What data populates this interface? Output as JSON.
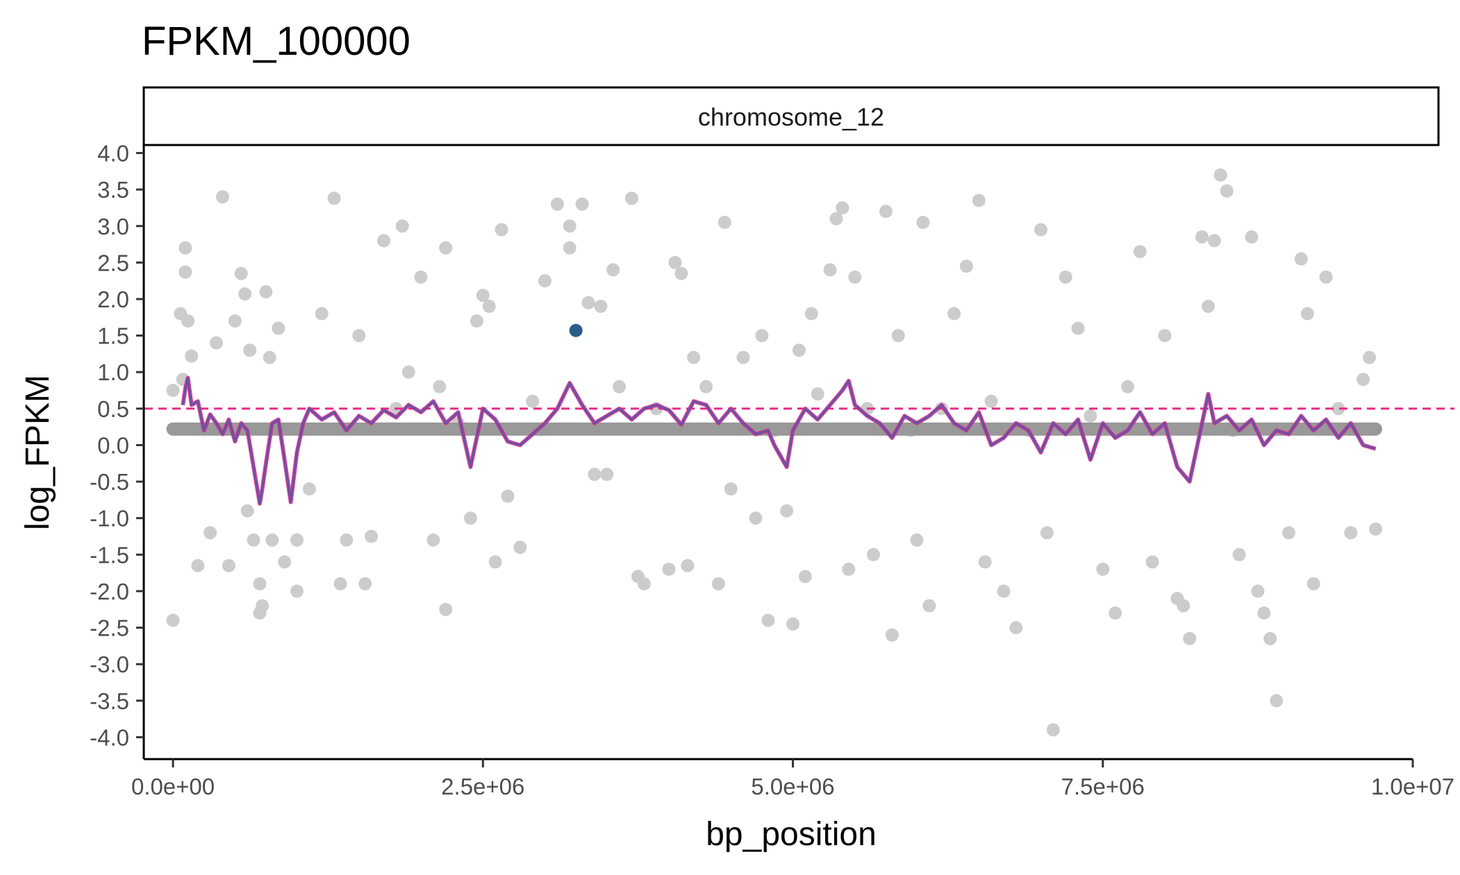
{
  "chart_data": {
    "type": "scatter",
    "title": "FPKM_100000",
    "facet_label": "chromosome_12",
    "xlabel": "bp_position",
    "ylabel": "log_FPKM",
    "xlim": [
      -230000,
      10000000
    ],
    "ylim": [
      -4.3,
      4.1
    ],
    "x_ticks": [
      {
        "value": 0,
        "label": "0.0e+00"
      },
      {
        "value": 2500000,
        "label": "2.5e+06"
      },
      {
        "value": 5000000,
        "label": "5.0e+06"
      },
      {
        "value": 7500000,
        "label": "7.5e+06"
      },
      {
        "value": 10000000,
        "label": "1.0e+07"
      }
    ],
    "y_ticks": [
      {
        "value": 4.0,
        "label": "4.0"
      },
      {
        "value": 3.5,
        "label": "3.5"
      },
      {
        "value": 3.0,
        "label": "3.0"
      },
      {
        "value": 2.5,
        "label": "2.5"
      },
      {
        "value": 2.0,
        "label": "2.0"
      },
      {
        "value": 1.5,
        "label": "1.5"
      },
      {
        "value": 1.0,
        "label": "1.0"
      },
      {
        "value": 0.5,
        "label": "0.5"
      },
      {
        "value": 0.0,
        "label": "0.0"
      },
      {
        "value": -0.5,
        "label": "-0.5"
      },
      {
        "value": -1.0,
        "label": "-1.0"
      },
      {
        "value": -1.5,
        "label": "-1.5"
      },
      {
        "value": -2.0,
        "label": "-2.0"
      },
      {
        "value": -2.5,
        "label": "-2.5"
      },
      {
        "value": -3.0,
        "label": "-3.0"
      },
      {
        "value": -3.5,
        "label": "-3.5"
      },
      {
        "value": -4.0,
        "label": "-4.0"
      }
    ],
    "threshold": {
      "y": 0.5,
      "color": "#e7298a",
      "style": "dashed"
    },
    "baseline": {
      "y": 0.22,
      "x_range": [
        0,
        9700000
      ],
      "color": "#999999"
    },
    "highlight_point": {
      "x": 3250000,
      "y": 1.57,
      "color": "#2b5d8a"
    },
    "colors": {
      "points": "#cccccc",
      "line": "#6a51a3",
      "line_above_threshold": "#e7298a"
    },
    "points": [
      [
        0,
        -2.4
      ],
      [
        0,
        0.75
      ],
      [
        60000,
        1.8
      ],
      [
        80000,
        0.9
      ],
      [
        100000,
        2.7
      ],
      [
        100000,
        2.37
      ],
      [
        120000,
        1.7
      ],
      [
        150000,
        1.22
      ],
      [
        200000,
        -1.65
      ],
      [
        300000,
        -1.2
      ],
      [
        350000,
        1.4
      ],
      [
        400000,
        3.4
      ],
      [
        450000,
        -1.65
      ],
      [
        500000,
        1.7
      ],
      [
        550000,
        2.35
      ],
      [
        580000,
        2.07
      ],
      [
        600000,
        -0.9
      ],
      [
        620000,
        1.3
      ],
      [
        650000,
        -1.3
      ],
      [
        700000,
        -1.9
      ],
      [
        700000,
        -2.3
      ],
      [
        720000,
        -2.2
      ],
      [
        750000,
        2.1
      ],
      [
        780000,
        1.2
      ],
      [
        800000,
        -1.3
      ],
      [
        850000,
        1.6
      ],
      [
        900000,
        -1.6
      ],
      [
        1000000,
        -1.3
      ],
      [
        1000000,
        -2.0
      ],
      [
        1100000,
        -0.6
      ],
      [
        1200000,
        1.8
      ],
      [
        1300000,
        3.38
      ],
      [
        1350000,
        -1.9
      ],
      [
        1400000,
        -1.3
      ],
      [
        1500000,
        1.5
      ],
      [
        1550000,
        -1.9
      ],
      [
        1600000,
        -1.25
      ],
      [
        1700000,
        2.8
      ],
      [
        1800000,
        0.5
      ],
      [
        1850000,
        3.0
      ],
      [
        1900000,
        1.0
      ],
      [
        2000000,
        2.3
      ],
      [
        2100000,
        -1.3
      ],
      [
        2150000,
        0.8
      ],
      [
        2200000,
        2.7
      ],
      [
        2200000,
        -2.25
      ],
      [
        2300000,
        0.3
      ],
      [
        2400000,
        -1.0
      ],
      [
        2450000,
        1.7
      ],
      [
        2500000,
        2.05
      ],
      [
        2550000,
        1.9
      ],
      [
        2600000,
        -1.6
      ],
      [
        2650000,
        2.95
      ],
      [
        2700000,
        -0.7
      ],
      [
        2800000,
        -1.4
      ],
      [
        2900000,
        0.6
      ],
      [
        3000000,
        2.25
      ],
      [
        3100000,
        3.3
      ],
      [
        3200000,
        3.0
      ],
      [
        3200000,
        2.7
      ],
      [
        3300000,
        3.3
      ],
      [
        3350000,
        1.95
      ],
      [
        3400000,
        -0.4
      ],
      [
        3450000,
        1.9
      ],
      [
        3500000,
        -0.4
      ],
      [
        3550000,
        2.4
      ],
      [
        3600000,
        0.8
      ],
      [
        3700000,
        3.38
      ],
      [
        3750000,
        -1.8
      ],
      [
        3800000,
        -1.9
      ],
      [
        3900000,
        0.5
      ],
      [
        4000000,
        -1.7
      ],
      [
        4050000,
        2.5
      ],
      [
        4100000,
        2.35
      ],
      [
        4150000,
        -1.65
      ],
      [
        4200000,
        1.2
      ],
      [
        4300000,
        0.8
      ],
      [
        4400000,
        -1.9
      ],
      [
        4450000,
        3.05
      ],
      [
        4500000,
        -0.6
      ],
      [
        4600000,
        1.2
      ],
      [
        4700000,
        -1.0
      ],
      [
        4750000,
        1.5
      ],
      [
        4800000,
        -2.4
      ],
      [
        4850000,
        0.2
      ],
      [
        4950000,
        -0.9
      ],
      [
        5000000,
        -2.45
      ],
      [
        5050000,
        1.3
      ],
      [
        5100000,
        -1.8
      ],
      [
        5150000,
        1.8
      ],
      [
        5200000,
        0.7
      ],
      [
        5300000,
        2.4
      ],
      [
        5350000,
        3.1
      ],
      [
        5400000,
        3.25
      ],
      [
        5450000,
        -1.7
      ],
      [
        5500000,
        2.3
      ],
      [
        5600000,
        0.5
      ],
      [
        5650000,
        -1.5
      ],
      [
        5750000,
        3.2
      ],
      [
        5800000,
        -2.6
      ],
      [
        5850000,
        1.5
      ],
      [
        5950000,
        0.2
      ],
      [
        6000000,
        -1.3
      ],
      [
        6050000,
        3.05
      ],
      [
        6100000,
        -2.2
      ],
      [
        6200000,
        0.5
      ],
      [
        6300000,
        1.8
      ],
      [
        6400000,
        2.45
      ],
      [
        6500000,
        3.35
      ],
      [
        6550000,
        -1.6
      ],
      [
        6600000,
        0.6
      ],
      [
        6700000,
        -2.0
      ],
      [
        6800000,
        -2.5
      ],
      [
        6900000,
        0.2
      ],
      [
        7000000,
        2.95
      ],
      [
        7050000,
        -1.2
      ],
      [
        7100000,
        -3.9
      ],
      [
        7200000,
        2.3
      ],
      [
        7300000,
        1.6
      ],
      [
        7400000,
        0.4
      ],
      [
        7500000,
        -1.7
      ],
      [
        7600000,
        -2.3
      ],
      [
        7700000,
        0.8
      ],
      [
        7800000,
        2.65
      ],
      [
        7900000,
        -1.6
      ],
      [
        8000000,
        1.5
      ],
      [
        8100000,
        -2.1
      ],
      [
        8150000,
        -2.2
      ],
      [
        8200000,
        -2.65
      ],
      [
        8300000,
        2.85
      ],
      [
        8350000,
        1.9
      ],
      [
        8400000,
        2.8
      ],
      [
        8450000,
        3.7
      ],
      [
        8500000,
        3.48
      ],
      [
        8550000,
        0.2
      ],
      [
        8600000,
        -1.5
      ],
      [
        8700000,
        2.85
      ],
      [
        8750000,
        -2.0
      ],
      [
        8800000,
        -2.3
      ],
      [
        8850000,
        -2.65
      ],
      [
        8900000,
        -3.5
      ],
      [
        9000000,
        -1.2
      ],
      [
        9100000,
        2.55
      ],
      [
        9150000,
        1.8
      ],
      [
        9200000,
        -1.9
      ],
      [
        9300000,
        2.3
      ],
      [
        9400000,
        0.5
      ],
      [
        9500000,
        -1.2
      ],
      [
        9600000,
        0.9
      ],
      [
        9650000,
        1.2
      ],
      [
        9700000,
        -1.15
      ]
    ],
    "line_series": [
      [
        80000,
        0.55
      ],
      [
        100000,
        0.78
      ],
      [
        120000,
        0.92
      ],
      [
        150000,
        0.55
      ],
      [
        200000,
        0.6
      ],
      [
        250000,
        0.2
      ],
      [
        300000,
        0.42
      ],
      [
        350000,
        0.3
      ],
      [
        400000,
        0.15
      ],
      [
        450000,
        0.35
      ],
      [
        500000,
        0.05
      ],
      [
        550000,
        0.3
      ],
      [
        600000,
        0.2
      ],
      [
        650000,
        -0.3
      ],
      [
        700000,
        -0.8
      ],
      [
        720000,
        -0.6
      ],
      [
        750000,
        -0.25
      ],
      [
        800000,
        0.3
      ],
      [
        850000,
        0.35
      ],
      [
        900000,
        -0.2
      ],
      [
        950000,
        -0.78
      ],
      [
        1000000,
        -0.1
      ],
      [
        1050000,
        0.3
      ],
      [
        1100000,
        0.5
      ],
      [
        1200000,
        0.35
      ],
      [
        1300000,
        0.45
      ],
      [
        1400000,
        0.2
      ],
      [
        1500000,
        0.4
      ],
      [
        1600000,
        0.3
      ],
      [
        1700000,
        0.48
      ],
      [
        1800000,
        0.38
      ],
      [
        1900000,
        0.55
      ],
      [
        2000000,
        0.45
      ],
      [
        2100000,
        0.6
      ],
      [
        2200000,
        0.3
      ],
      [
        2300000,
        0.45
      ],
      [
        2400000,
        -0.3
      ],
      [
        2500000,
        0.5
      ],
      [
        2600000,
        0.35
      ],
      [
        2700000,
        0.05
      ],
      [
        2800000,
        0.0
      ],
      [
        2900000,
        0.15
      ],
      [
        3000000,
        0.3
      ],
      [
        3100000,
        0.5
      ],
      [
        3200000,
        0.85
      ],
      [
        3300000,
        0.55
      ],
      [
        3400000,
        0.3
      ],
      [
        3500000,
        0.4
      ],
      [
        3600000,
        0.5
      ],
      [
        3700000,
        0.35
      ],
      [
        3800000,
        0.5
      ],
      [
        3900000,
        0.55
      ],
      [
        4000000,
        0.48
      ],
      [
        4100000,
        0.28
      ],
      [
        4200000,
        0.6
      ],
      [
        4300000,
        0.55
      ],
      [
        4400000,
        0.3
      ],
      [
        4500000,
        0.5
      ],
      [
        4600000,
        0.3
      ],
      [
        4700000,
        0.15
      ],
      [
        4800000,
        0.2
      ],
      [
        4850000,
        0.0
      ],
      [
        4950000,
        -0.3
      ],
      [
        5000000,
        0.2
      ],
      [
        5100000,
        0.5
      ],
      [
        5200000,
        0.35
      ],
      [
        5300000,
        0.55
      ],
      [
        5400000,
        0.75
      ],
      [
        5450000,
        0.88
      ],
      [
        5500000,
        0.55
      ],
      [
        5600000,
        0.4
      ],
      [
        5700000,
        0.3
      ],
      [
        5800000,
        0.1
      ],
      [
        5900000,
        0.4
      ],
      [
        6000000,
        0.3
      ],
      [
        6100000,
        0.4
      ],
      [
        6200000,
        0.55
      ],
      [
        6300000,
        0.3
      ],
      [
        6400000,
        0.2
      ],
      [
        6500000,
        0.45
      ],
      [
        6600000,
        0.0
      ],
      [
        6700000,
        0.1
      ],
      [
        6800000,
        0.3
      ],
      [
        6900000,
        0.2
      ],
      [
        7000000,
        -0.1
      ],
      [
        7100000,
        0.3
      ],
      [
        7200000,
        0.15
      ],
      [
        7300000,
        0.35
      ],
      [
        7400000,
        -0.2
      ],
      [
        7500000,
        0.3
      ],
      [
        7600000,
        0.1
      ],
      [
        7700000,
        0.2
      ],
      [
        7800000,
        0.45
      ],
      [
        7900000,
        0.15
      ],
      [
        8000000,
        0.3
      ],
      [
        8100000,
        -0.3
      ],
      [
        8200000,
        -0.5
      ],
      [
        8300000,
        0.3
      ],
      [
        8350000,
        0.7
      ],
      [
        8400000,
        0.3
      ],
      [
        8500000,
        0.4
      ],
      [
        8600000,
        0.2
      ],
      [
        8700000,
        0.35
      ],
      [
        8800000,
        0.0
      ],
      [
        8900000,
        0.2
      ],
      [
        9000000,
        0.15
      ],
      [
        9100000,
        0.4
      ],
      [
        9200000,
        0.2
      ],
      [
        9300000,
        0.35
      ],
      [
        9400000,
        0.1
      ],
      [
        9500000,
        0.3
      ],
      [
        9600000,
        0.0
      ],
      [
        9700000,
        -0.05
      ]
    ]
  }
}
